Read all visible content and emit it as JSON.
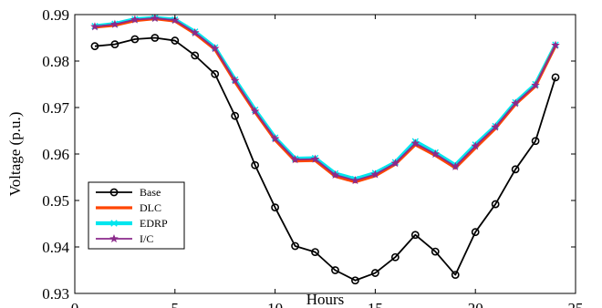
{
  "chart_data": {
    "type": "line",
    "xlabel": "Hours",
    "ylabel": "Voltage (p.u.)",
    "xlim": [
      0,
      25
    ],
    "ylim": [
      0.93,
      0.99
    ],
    "xticks": [
      0,
      5,
      10,
      15,
      20,
      25
    ],
    "yticks": [
      0.93,
      0.94,
      0.95,
      0.96,
      0.97,
      0.98,
      0.99
    ],
    "xtick_labels": [
      "0",
      "5",
      "10",
      "15",
      "20",
      "25"
    ],
    "ytick_labels": [
      "0.93",
      "0.94",
      "0.95",
      "0.96",
      "0.97",
      "0.98",
      "0.99"
    ],
    "grid": false,
    "legend_position": "bottom-left",
    "x": [
      1,
      2,
      3,
      4,
      5,
      6,
      7,
      8,
      9,
      10,
      11,
      12,
      13,
      14,
      15,
      16,
      17,
      18,
      19,
      20,
      21,
      22,
      23,
      24
    ],
    "series": [
      {
        "name": "Base",
        "color": "#000000",
        "marker": "circle",
        "values": [
          0.9832,
          0.9836,
          0.9847,
          0.985,
          0.9844,
          0.9812,
          0.9772,
          0.9682,
          0.9576,
          0.9485,
          0.9402,
          0.9389,
          0.935,
          0.9328,
          0.9344,
          0.9378,
          0.9426,
          0.939,
          0.934,
          0.9432,
          0.9492,
          0.9567,
          0.9628,
          0.9765
        ]
      },
      {
        "name": "DLC",
        "color": "#ff4500",
        "marker": "none",
        "values": [
          0.9873,
          0.9877,
          0.9887,
          0.9891,
          0.9886,
          0.9859,
          0.9825,
          0.9755,
          0.969,
          0.963,
          0.9585,
          0.9586,
          0.9552,
          0.954,
          0.9553,
          0.9578,
          0.962,
          0.9597,
          0.957,
          0.9613,
          0.9655,
          0.9707,
          0.9746,
          0.9833
        ]
      },
      {
        "name": "EDRP",
        "color": "#00e5ee",
        "marker": "x",
        "values": [
          0.9875,
          0.988,
          0.989,
          0.9893,
          0.9889,
          0.9863,
          0.9829,
          0.976,
          0.9695,
          0.9635,
          0.959,
          0.9591,
          0.9558,
          0.9546,
          0.9559,
          0.9582,
          0.9627,
          0.9603,
          0.9576,
          0.962,
          0.966,
          0.9711,
          0.975,
          0.9835
        ]
      },
      {
        "name": "I/C",
        "color": "#8b2a8b",
        "marker": "star",
        "values": [
          0.9874,
          0.9879,
          0.9889,
          0.9892,
          0.9888,
          0.9861,
          0.9827,
          0.9758,
          0.9692,
          0.9633,
          0.9588,
          0.9589,
          0.9555,
          0.9543,
          0.9556,
          0.958,
          0.9623,
          0.96,
          0.9573,
          0.9617,
          0.9658,
          0.9709,
          0.9748,
          0.9834
        ]
      }
    ]
  }
}
